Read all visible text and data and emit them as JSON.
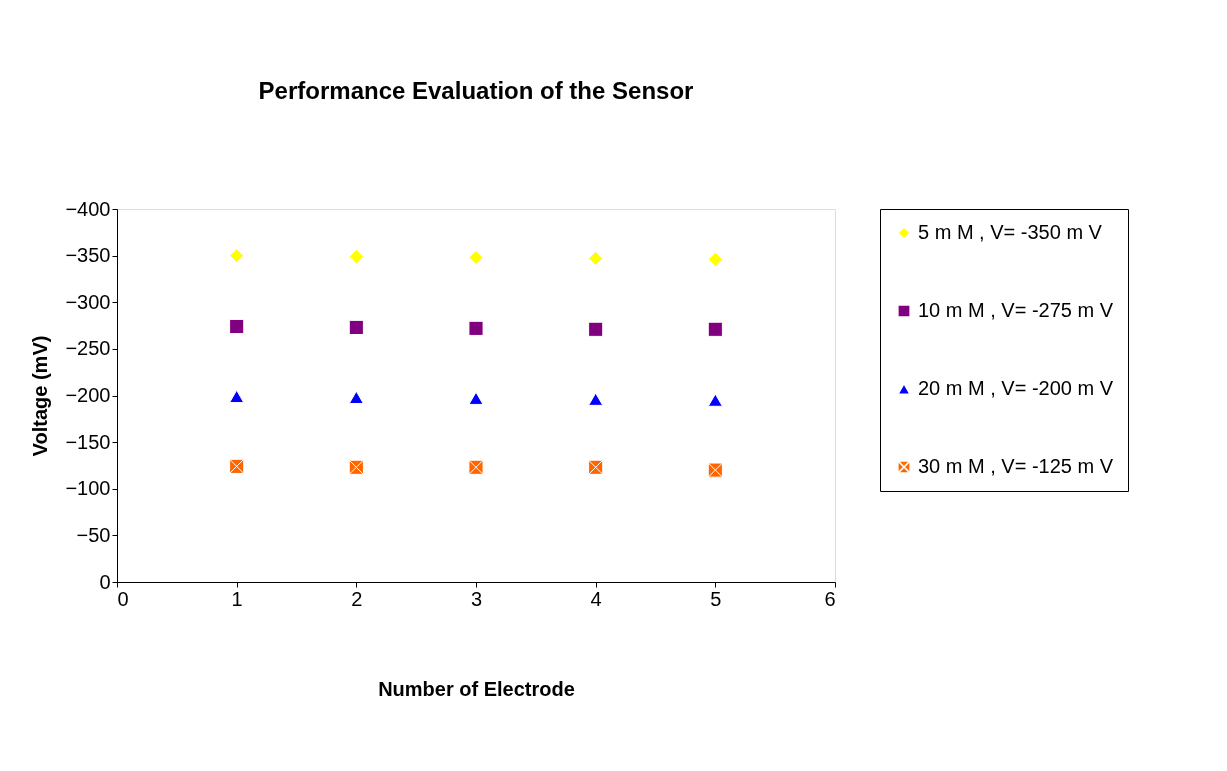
{
  "chart_data": {
    "type": "scatter",
    "title": "Performance Evaluation of the Sensor",
    "xlabel": "Number of Electrode",
    "ylabel": "Voltage (mV)",
    "x": [
      1,
      2,
      3,
      4,
      5
    ],
    "series": [
      {
        "name": "5 m M , V= -350 m V",
        "color": "#ffff00",
        "marker": "diamond",
        "values": [
          -350,
          -349,
          -348,
          -347,
          -346
        ]
      },
      {
        "name": "10 m M , V= -275 m V",
        "color": "#800080",
        "marker": "square",
        "values": [
          -274,
          -273,
          -272,
          -271,
          -271
        ]
      },
      {
        "name": "20 m M , V= -200 m V",
        "color": "#0000ff",
        "marker": "triangle",
        "values": [
          -199,
          -198,
          -197,
          -196,
          -195
        ]
      },
      {
        "name": "30 m M , V= -125 m V",
        "color": "#ff6600",
        "marker": "cross",
        "values": [
          -124,
          -123,
          -123,
          -123,
          -120
        ]
      }
    ],
    "xlim": [
      0,
      6
    ],
    "xticks": [
      0,
      1,
      2,
      3,
      4,
      5,
      6
    ],
    "ylim": [
      0,
      -400
    ],
    "yticks": [
      0,
      -50,
      -100,
      -150,
      -200,
      -250,
      -300,
      -350,
      -400
    ],
    "grid": false,
    "legend": "right"
  }
}
